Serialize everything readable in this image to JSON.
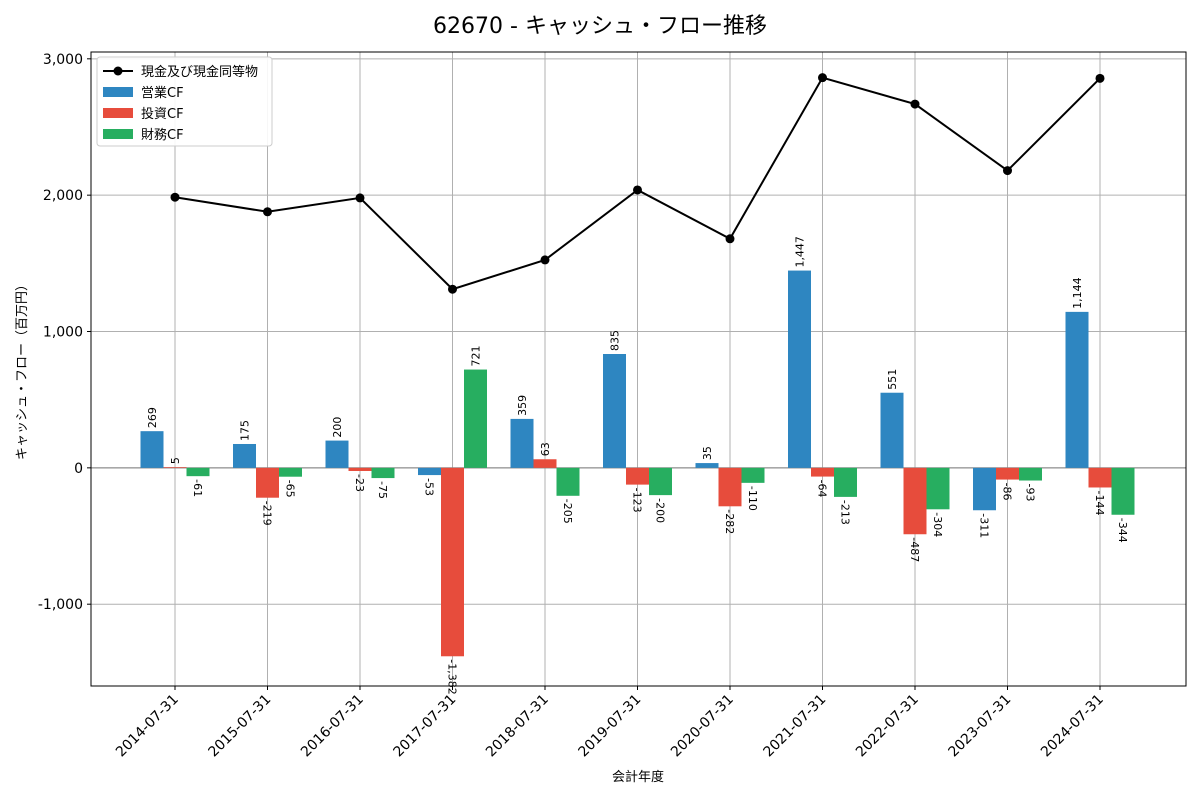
{
  "chart_data": {
    "type": "bar",
    "title": "62670 - キャッシュ・フロー推移",
    "xlabel": "会計年度",
    "ylabel": "キャッシュ・フロー（百万円）",
    "ylim": [
      -1600,
      3050
    ],
    "yticks": [
      -1000,
      0,
      1000,
      2000,
      3000
    ],
    "ytick_labels": [
      "-1,000",
      "0",
      "1,000",
      "2,000",
      "3,000"
    ],
    "grid": true,
    "legend_position": "top-left",
    "categories": [
      "2014-07-31",
      "2015-07-31",
      "2016-07-31",
      "2017-07-31",
      "2018-07-31",
      "2019-07-31",
      "2020-07-31",
      "2021-07-31",
      "2022-07-31",
      "2023-07-31",
      "2024-07-31"
    ],
    "series": [
      {
        "name": "営業CF",
        "kind": "bar",
        "color": "#2e86c1",
        "values": [
          269,
          175,
          200,
          -53,
          359,
          835,
          35,
          1447,
          551,
          -311,
          1144
        ],
        "labels": [
          "269",
          "175",
          "200",
          "-53",
          "359",
          "835",
          "35",
          "1,447",
          "551",
          "-311",
          "1,144"
        ]
      },
      {
        "name": "投資CF",
        "kind": "bar",
        "color": "#e74c3c",
        "values": [
          5,
          -219,
          -23,
          -1382,
          63,
          -123,
          -282,
          -64,
          -487,
          -86,
          -144
        ],
        "labels": [
          "5",
          "-219",
          "-23",
          "-1,382",
          "63",
          "-123",
          "-282",
          "-64",
          "-487",
          "-86",
          "-144"
        ]
      },
      {
        "name": "財務CF",
        "kind": "bar",
        "color": "#27ae60",
        "values": [
          -61,
          -65,
          -75,
          721,
          -205,
          -200,
          -110,
          -213,
          -304,
          -93,
          -344
        ],
        "labels": [
          "-61",
          "-65",
          "-75",
          "721",
          "-205",
          "-200",
          "-110",
          "-213",
          "-304",
          "-93",
          "-344"
        ]
      },
      {
        "name": "現金及び現金同等物",
        "kind": "line",
        "color": "#000000",
        "values": [
          1985,
          1878,
          1980,
          1310,
          1525,
          2038,
          1680,
          2862,
          2668,
          2180,
          2857
        ]
      }
    ]
  }
}
